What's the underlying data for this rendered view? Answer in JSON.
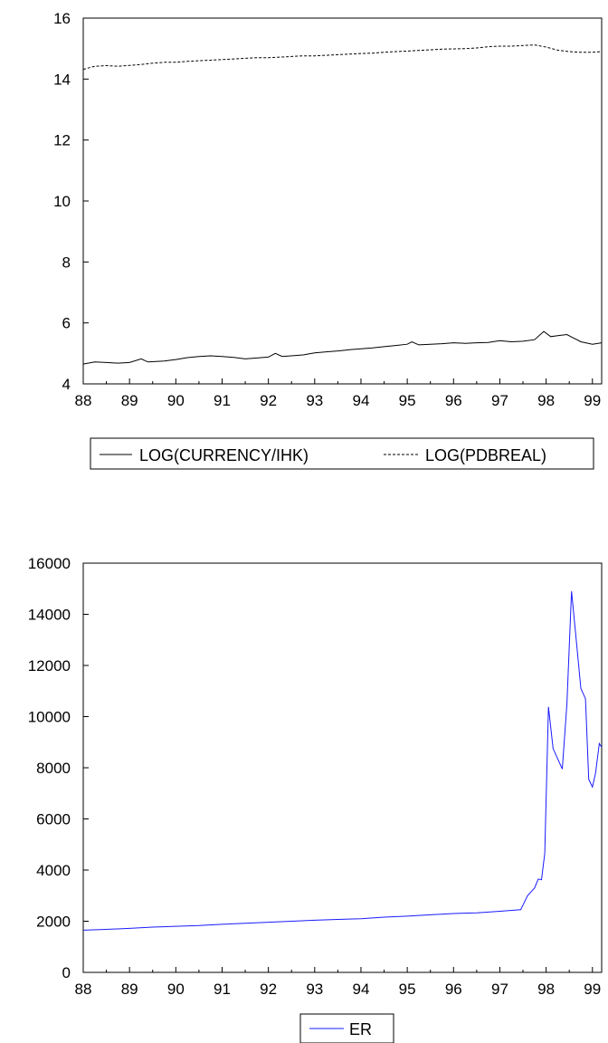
{
  "chart_data": [
    {
      "type": "line",
      "title": "",
      "xlabel": "",
      "ylabel": "",
      "xlim": [
        1988.0,
        1999.2
      ],
      "ylim": [
        4,
        16
      ],
      "x_ticks": [
        88,
        89,
        90,
        91,
        92,
        93,
        94,
        95,
        96,
        97,
        98,
        99
      ],
      "y_ticks": [
        4,
        6,
        8,
        10,
        12,
        14,
        16
      ],
      "grid": false,
      "legend_position": "bottom",
      "series": [
        {
          "name": "LOG(CURRENCY/IHK)",
          "color": "#000000",
          "line_style": "solid",
          "points": [
            [
              1988.0,
              4.65
            ],
            [
              1988.25,
              4.72
            ],
            [
              1988.5,
              4.7
            ],
            [
              1988.75,
              4.68
            ],
            [
              1989.0,
              4.7
            ],
            [
              1989.25,
              4.82
            ],
            [
              1989.4,
              4.72
            ],
            [
              1989.75,
              4.75
            ],
            [
              1990.0,
              4.8
            ],
            [
              1990.25,
              4.86
            ],
            [
              1990.5,
              4.9
            ],
            [
              1990.75,
              4.92
            ],
            [
              1991.0,
              4.9
            ],
            [
              1991.25,
              4.87
            ],
            [
              1991.5,
              4.82
            ],
            [
              1991.75,
              4.85
            ],
            [
              1992.0,
              4.88
            ],
            [
              1992.15,
              5.0
            ],
            [
              1992.3,
              4.9
            ],
            [
              1992.75,
              4.95
            ],
            [
              1993.0,
              5.02
            ],
            [
              1993.25,
              5.05
            ],
            [
              1993.5,
              5.08
            ],
            [
              1993.75,
              5.12
            ],
            [
              1994.0,
              5.15
            ],
            [
              1994.25,
              5.18
            ],
            [
              1994.5,
              5.22
            ],
            [
              1994.75,
              5.26
            ],
            [
              1995.0,
              5.3
            ],
            [
              1995.1,
              5.38
            ],
            [
              1995.25,
              5.28
            ],
            [
              1995.5,
              5.3
            ],
            [
              1995.75,
              5.32
            ],
            [
              1996.0,
              5.35
            ],
            [
              1996.25,
              5.33
            ],
            [
              1996.5,
              5.35
            ],
            [
              1996.75,
              5.36
            ],
            [
              1997.0,
              5.42
            ],
            [
              1997.25,
              5.38
            ],
            [
              1997.5,
              5.4
            ],
            [
              1997.75,
              5.45
            ],
            [
              1997.95,
              5.72
            ],
            [
              1998.1,
              5.55
            ],
            [
              1998.25,
              5.58
            ],
            [
              1998.45,
              5.62
            ],
            [
              1998.75,
              5.38
            ],
            [
              1999.0,
              5.3
            ],
            [
              1999.2,
              5.35
            ]
          ]
        },
        {
          "name": "LOG(PDBREAL)",
          "color": "#000000",
          "line_style": "dashed",
          "points": [
            [
              1988.0,
              14.32
            ],
            [
              1988.25,
              14.42
            ],
            [
              1988.5,
              14.44
            ],
            [
              1988.75,
              14.42
            ],
            [
              1989.0,
              14.45
            ],
            [
              1989.25,
              14.48
            ],
            [
              1989.5,
              14.52
            ],
            [
              1989.75,
              14.55
            ],
            [
              1990.0,
              14.55
            ],
            [
              1990.25,
              14.58
            ],
            [
              1990.5,
              14.6
            ],
            [
              1990.75,
              14.62
            ],
            [
              1991.0,
              14.64
            ],
            [
              1991.25,
              14.66
            ],
            [
              1991.5,
              14.68
            ],
            [
              1991.75,
              14.7
            ],
            [
              1992.0,
              14.7
            ],
            [
              1992.25,
              14.72
            ],
            [
              1992.5,
              14.74
            ],
            [
              1992.75,
              14.76
            ],
            [
              1993.0,
              14.76
            ],
            [
              1993.25,
              14.78
            ],
            [
              1993.5,
              14.8
            ],
            [
              1993.75,
              14.82
            ],
            [
              1994.0,
              14.84
            ],
            [
              1994.25,
              14.85
            ],
            [
              1994.5,
              14.88
            ],
            [
              1994.75,
              14.9
            ],
            [
              1995.0,
              14.92
            ],
            [
              1995.25,
              14.94
            ],
            [
              1995.5,
              14.96
            ],
            [
              1995.75,
              14.98
            ],
            [
              1996.0,
              14.99
            ],
            [
              1996.25,
              15.0
            ],
            [
              1996.5,
              15.02
            ],
            [
              1996.75,
              15.06
            ],
            [
              1997.0,
              15.08
            ],
            [
              1997.25,
              15.08
            ],
            [
              1997.5,
              15.1
            ],
            [
              1997.75,
              15.12
            ],
            [
              1998.0,
              15.05
            ],
            [
              1998.25,
              14.95
            ],
            [
              1998.5,
              14.9
            ],
            [
              1998.75,
              14.88
            ],
            [
              1999.0,
              14.88
            ],
            [
              1999.2,
              14.9
            ]
          ]
        }
      ]
    },
    {
      "type": "line",
      "title": "",
      "xlabel": "",
      "ylabel": "",
      "xlim": [
        1988.0,
        1999.2
      ],
      "ylim": [
        0,
        16000
      ],
      "x_ticks": [
        88,
        89,
        90,
        91,
        92,
        93,
        94,
        95,
        96,
        97,
        98,
        99
      ],
      "y_ticks": [
        0,
        2000,
        4000,
        6000,
        8000,
        10000,
        12000,
        14000,
        16000
      ],
      "grid": false,
      "legend_position": "bottom",
      "series": [
        {
          "name": "ER",
          "color": "#1a1aff",
          "line_style": "solid",
          "points": [
            [
              1988.0,
              1650
            ],
            [
              1988.5,
              1680
            ],
            [
              1989.0,
              1720
            ],
            [
              1989.5,
              1770
            ],
            [
              1990.0,
              1800
            ],
            [
              1990.5,
              1830
            ],
            [
              1991.0,
              1880
            ],
            [
              1991.5,
              1920
            ],
            [
              1992.0,
              1960
            ],
            [
              1992.5,
              2000
            ],
            [
              1993.0,
              2040
            ],
            [
              1993.5,
              2070
            ],
            [
              1994.0,
              2100
            ],
            [
              1994.5,
              2160
            ],
            [
              1995.0,
              2200
            ],
            [
              1995.5,
              2250
            ],
            [
              1996.0,
              2300
            ],
            [
              1996.5,
              2330
            ],
            [
              1997.0,
              2390
            ],
            [
              1997.45,
              2450
            ],
            [
              1997.6,
              3000
            ],
            [
              1997.75,
              3300
            ],
            [
              1997.83,
              3650
            ],
            [
              1997.9,
              3620
            ],
            [
              1997.97,
              4650
            ],
            [
              1998.05,
              10380
            ],
            [
              1998.15,
              8750
            ],
            [
              1998.25,
              8350
            ],
            [
              1998.35,
              7950
            ],
            [
              1998.45,
              10500
            ],
            [
              1998.55,
              14900
            ],
            [
              1998.65,
              13000
            ],
            [
              1998.75,
              11100
            ],
            [
              1998.85,
              10700
            ],
            [
              1998.92,
              7550
            ],
            [
              1999.0,
              7250
            ],
            [
              1999.07,
              7800
            ],
            [
              1999.15,
              8950
            ],
            [
              1999.2,
              8800
            ]
          ]
        }
      ]
    }
  ]
}
